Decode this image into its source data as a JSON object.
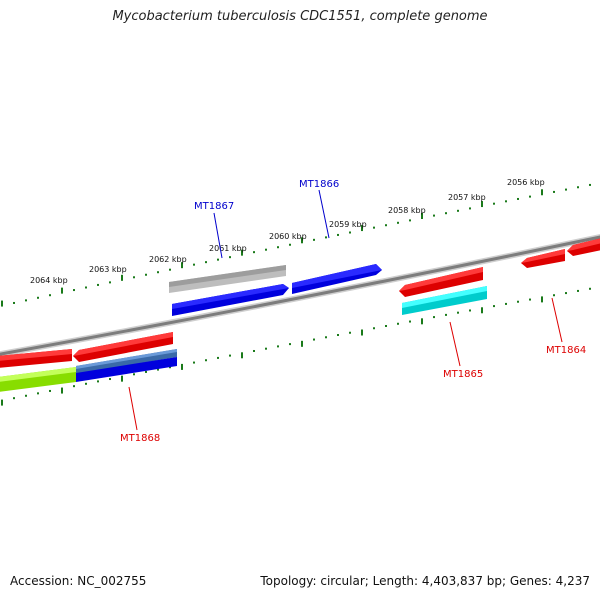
{
  "title": "Mycobacterium tuberculosis CDC1551, complete genome",
  "footer": {
    "accession": "Accession: NC_002755",
    "summary": "Topology: circular; Length: 4,403,837 bp; Genes: 4,237"
  },
  "colors": {
    "backbone": "#8a8a8a",
    "tick": "#1a7a1a",
    "forward_label": "#0000cc",
    "reverse_label": "#dd0000"
  },
  "ruler_labels": [
    "2064 kbp",
    "2063 kbp",
    "2062 kbp",
    "2061 kbp",
    "2060 kbp",
    "2059 kbp",
    "2058 kbp",
    "2057 kbp",
    "2056 kbp"
  ],
  "gene_labels": [
    {
      "text": "MT1867",
      "strand": "forward"
    },
    {
      "text": "MT1866",
      "strand": "forward"
    },
    {
      "text": "MT1868",
      "strand": "reverse"
    },
    {
      "text": "MT1865",
      "strand": "reverse"
    },
    {
      "text": "MT1864",
      "strand": "reverse"
    }
  ]
}
